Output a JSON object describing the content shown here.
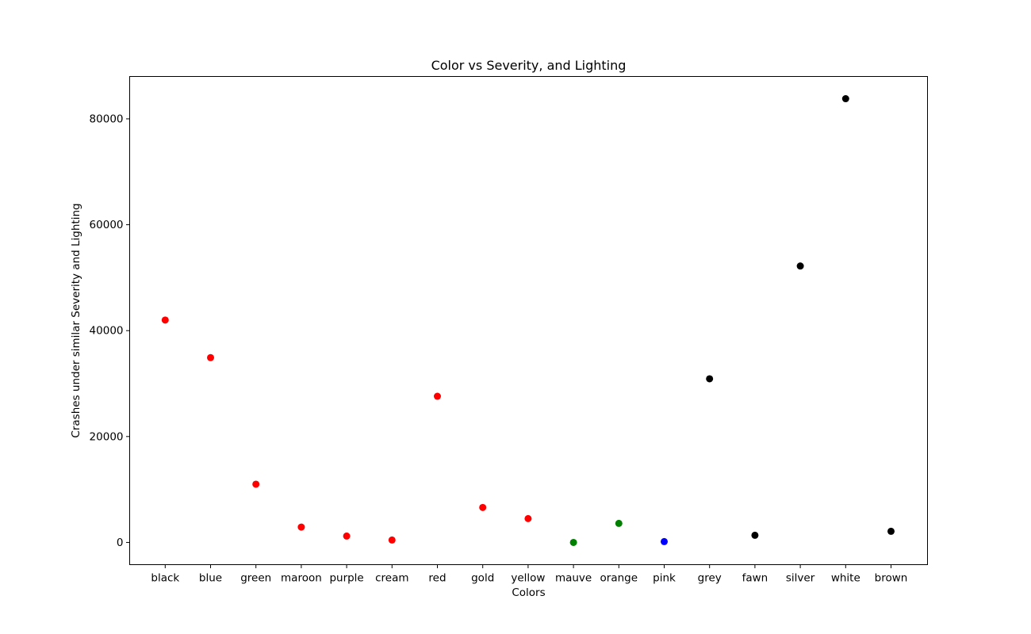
{
  "chart_data": {
    "type": "scatter",
    "title": "Color vs Severity, and Lighting",
    "xlabel": "Colors",
    "ylabel": "Crashes under similar Severity and Lighting",
    "categories": [
      "black",
      "blue",
      "green",
      "maroon",
      "purple",
      "cream",
      "red",
      "gold",
      "yellow",
      "mauve",
      "orange",
      "pink",
      "grey",
      "fawn",
      "silver",
      "white",
      "brown"
    ],
    "points": [
      {
        "x": "black",
        "y": 42000,
        "color": "#ff0000"
      },
      {
        "x": "blue",
        "y": 34900,
        "color": "#ff0000"
      },
      {
        "x": "green",
        "y": 11000,
        "color": "#ff0000"
      },
      {
        "x": "maroon",
        "y": 2900,
        "color": "#ff0000"
      },
      {
        "x": "purple",
        "y": 1200,
        "color": "#ff0000"
      },
      {
        "x": "cream",
        "y": 450,
        "color": "#ff0000"
      },
      {
        "x": "red",
        "y": 27600,
        "color": "#ff0000"
      },
      {
        "x": "gold",
        "y": 6600,
        "color": "#ff0000"
      },
      {
        "x": "yellow",
        "y": 4500,
        "color": "#ff0000"
      },
      {
        "x": "mauve",
        "y": 0,
        "color": "#008000"
      },
      {
        "x": "orange",
        "y": 3600,
        "color": "#008000"
      },
      {
        "x": "pink",
        "y": 150,
        "color": "#0000ff"
      },
      {
        "x": "grey",
        "y": 30900,
        "color": "#000000"
      },
      {
        "x": "fawn",
        "y": 1350,
        "color": "#000000"
      },
      {
        "x": "silver",
        "y": 52200,
        "color": "#000000"
      },
      {
        "x": "white",
        "y": 83800,
        "color": "#000000"
      },
      {
        "x": "brown",
        "y": 2100,
        "color": "#000000"
      }
    ],
    "yticks": [
      0,
      20000,
      40000,
      60000,
      80000
    ],
    "ylim": [
      -4200,
      88000
    ],
    "grid": false,
    "legend": "none"
  }
}
